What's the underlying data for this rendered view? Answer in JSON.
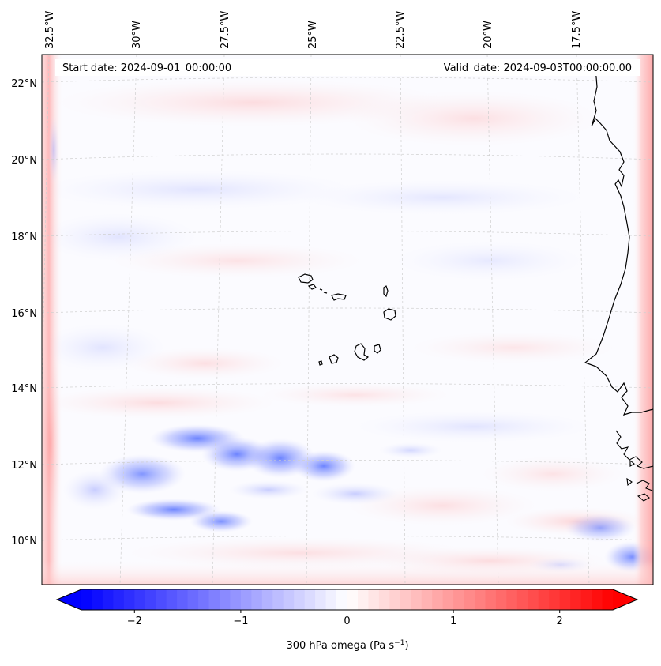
{
  "map": {
    "start_label": "Start date: 2024-09-01_00:00:00",
    "valid_label": "Valid_date: 2024-09-03T00:00:00.00",
    "lon_ticks": [
      "32.5°W",
      "30°W",
      "27.5°W",
      "25°W",
      "22.5°W",
      "20°W",
      "17.5°W"
    ],
    "lat_ticks": [
      "22°N",
      "20°N",
      "18°N",
      "16°N",
      "14°N",
      "12°N",
      "10°N"
    ],
    "extent": {
      "lon_min": -32.7,
      "lon_max": -15.3,
      "lat_min": 8.8,
      "lat_max": 22.8
    }
  },
  "colorbar": {
    "label": "300 hPa omega (Pa s",
    "label_sup": "−1",
    "label_close": ")",
    "ticks": [
      "−2",
      "−1",
      "0",
      "1",
      "2"
    ],
    "tick_values": [
      -2,
      -1,
      0,
      1,
      2
    ],
    "vmin": -2.5,
    "vmax": 2.5,
    "cmap": "bwr",
    "min_color": "#0000ff",
    "mid_color": "#ffffff",
    "max_color": "#ff0000"
  }
}
